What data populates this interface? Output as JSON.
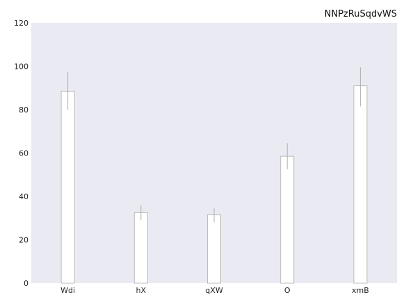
{
  "chart_data": {
    "type": "bar",
    "title": "NNPzRuSqdvWS",
    "xlabel": "",
    "ylabel": "",
    "categories": [
      "Wdi",
      "hX",
      "qXW",
      "O",
      "xmB"
    ],
    "values": [
      88.5,
      32.5,
      31.5,
      58.5,
      91
    ],
    "errors": [
      [
        80,
        97.5
      ],
      [
        29,
        36
      ],
      [
        28,
        34.5
      ],
      [
        52.5,
        64.5
      ],
      [
        81.5,
        99.5
      ]
    ],
    "ylim": [
      0,
      120
    ],
    "yticks": [
      0,
      20,
      40,
      60,
      80,
      100,
      120
    ],
    "grid": false,
    "legend": "none",
    "colors": {
      "plot_background": "#eaeaf2",
      "bar_fill": "#ffffff",
      "bar_edge": "#bcbcbc",
      "error_bar": "#b0b0b0"
    }
  }
}
